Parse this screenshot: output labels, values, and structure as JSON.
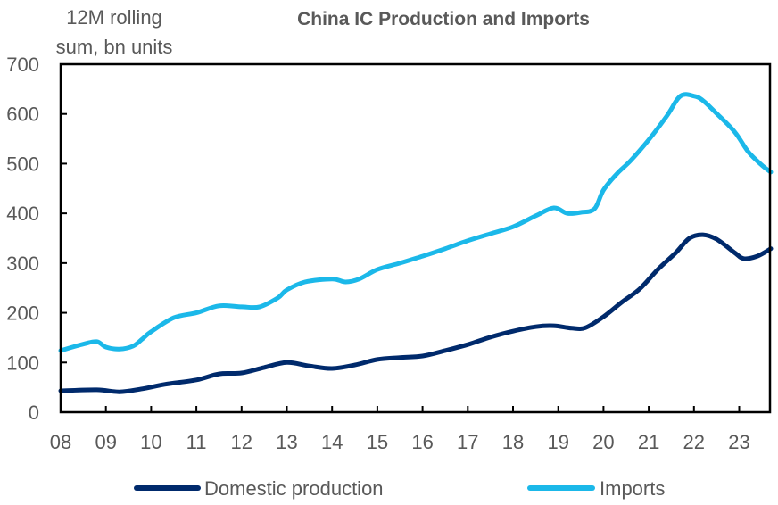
{
  "chart_data": {
    "type": "line",
    "title": "China IC Production and Imports",
    "ylabel": "12M rolling sum, bn units",
    "ylabel_lines": [
      "12M rolling",
      "sum, bn units"
    ],
    "xlabel": "",
    "xlim": [
      2008,
      2023.7
    ],
    "ylim": [
      0,
      700
    ],
    "yticks": [
      0,
      100,
      200,
      300,
      400,
      500,
      600,
      700
    ],
    "xticks": [
      2008,
      2009,
      2010,
      2011,
      2012,
      2013,
      2014,
      2015,
      2016,
      2017,
      2018,
      2019,
      2020,
      2021,
      2022,
      2023
    ],
    "xtick_labels": [
      "08",
      "09",
      "10",
      "11",
      "12",
      "13",
      "14",
      "15",
      "16",
      "17",
      "18",
      "19",
      "20",
      "21",
      "22",
      "23"
    ],
    "grid": false,
    "legend_position": "bottom",
    "series": [
      {
        "name": "Domestic production",
        "color": "#002A6C",
        "x": [
          2008.0,
          2008.8,
          2009.3,
          2009.8,
          2010.3,
          2011.0,
          2011.5,
          2012.0,
          2012.5,
          2013.0,
          2013.5,
          2014.0,
          2014.5,
          2015.0,
          2015.5,
          2016.0,
          2016.5,
          2017.0,
          2017.5,
          2018.0,
          2018.5,
          2018.9,
          2019.3,
          2019.6,
          2020.0,
          2020.4,
          2020.8,
          2021.2,
          2021.6,
          2021.9,
          2022.2,
          2022.5,
          2022.9,
          2023.1,
          2023.4,
          2023.7
        ],
        "values": [
          43,
          45,
          41,
          47,
          56,
          65,
          77,
          79,
          90,
          100,
          93,
          88,
          95,
          106,
          110,
          113,
          124,
          136,
          151,
          163,
          172,
          174,
          169,
          170,
          192,
          221,
          248,
          287,
          321,
          350,
          357,
          348,
          321,
          309,
          314,
          329
        ]
      },
      {
        "name": "Imports",
        "color": "#1BB8E9",
        "x": [
          2008.0,
          2008.5,
          2008.8,
          2009.0,
          2009.3,
          2009.6,
          2009.8,
          2010.0,
          2010.5,
          2011.0,
          2011.5,
          2012.0,
          2012.4,
          2012.8,
          2013.0,
          2013.4,
          2014.0,
          2014.3,
          2014.6,
          2015.0,
          2015.5,
          2016.0,
          2016.5,
          2017.0,
          2017.5,
          2018.0,
          2018.5,
          2018.9,
          2019.2,
          2019.5,
          2019.8,
          2020.0,
          2020.3,
          2020.6,
          2021.0,
          2021.4,
          2021.7,
          2022.0,
          2022.2,
          2022.5,
          2022.9,
          2023.2,
          2023.5,
          2023.7
        ],
        "values": [
          124,
          137,
          142,
          131,
          127,
          133,
          147,
          162,
          190,
          200,
          214,
          212,
          212,
          230,
          246,
          262,
          268,
          262,
          268,
          287,
          300,
          314,
          329,
          345,
          359,
          373,
          395,
          411,
          400,
          402,
          409,
          447,
          480,
          506,
          548,
          596,
          636,
          636,
          627,
          601,
          564,
          524,
          497,
          483
        ]
      }
    ]
  }
}
